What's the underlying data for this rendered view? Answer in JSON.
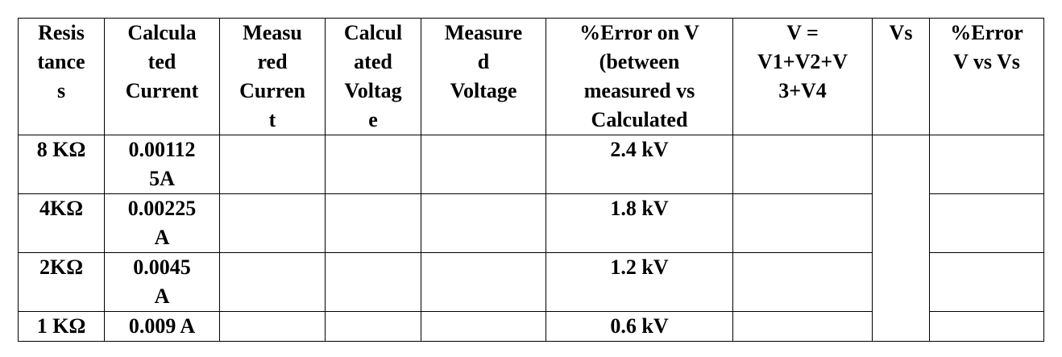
{
  "table": {
    "header": [
      [
        "Resis",
        "tance",
        "s"
      ],
      [
        "Calcula",
        "ted",
        "Current"
      ],
      [
        "Measu",
        "red",
        "Curren",
        "t"
      ],
      [
        "Calcul",
        "ated",
        "Voltag",
        "e"
      ],
      [
        "Measure",
        "d",
        "Voltage"
      ],
      [
        "%Error on V",
        "(between",
        "measured vs",
        "Calculated"
      ],
      [
        "V =",
        "V1+V2+V",
        "3+V4"
      ],
      [
        "Vs"
      ],
      [
        "%Error",
        "V vs Vs"
      ]
    ],
    "rows": [
      [
        [
          "8 KΩ"
        ],
        [
          "0.00112",
          "5A"
        ],
        [],
        [],
        [],
        [
          "2.4 kV"
        ],
        [],
        []
      ],
      [
        [
          "4KΩ"
        ],
        [
          "0.00225",
          "A"
        ],
        [],
        [],
        [],
        [
          "1.8 kV"
        ],
        [],
        []
      ],
      [
        [
          "2KΩ"
        ],
        [
          "0.0045",
          "A"
        ],
        [],
        [],
        [],
        [
          "1.2 kV"
        ],
        [],
        []
      ],
      [
        [
          "1 KΩ"
        ],
        [
          "0.009 A"
        ],
        [],
        [],
        [],
        [
          "0.6 kV"
        ],
        [],
        []
      ]
    ]
  }
}
